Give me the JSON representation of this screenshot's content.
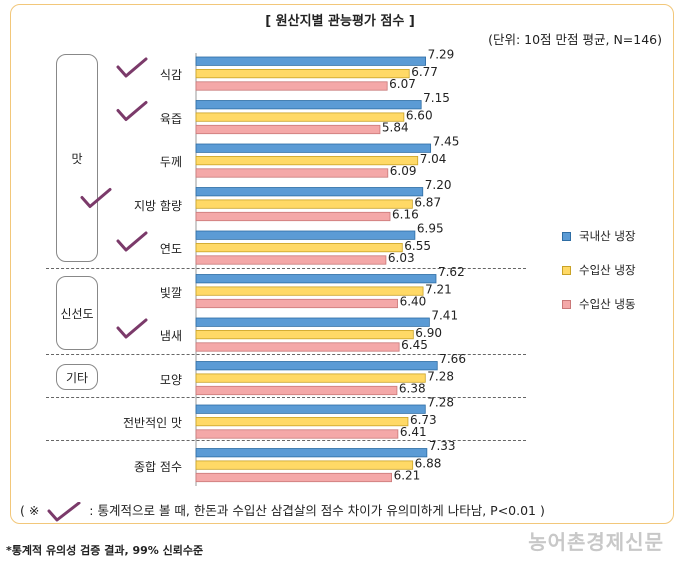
{
  "chart_data": {
    "type": "bar",
    "orientation": "horizontal",
    "title": "[ 원산지별 관능평가 점수 ]",
    "unit_note": "(단위: 10점 만점 평균, N=146)",
    "categories": [
      "식감",
      "육즙",
      "두께",
      "지방 함량",
      "연도",
      "빛깔",
      "냄새",
      "모양",
      "전반적인 맛",
      "종합 점수"
    ],
    "groups": [
      {
        "label": "맛",
        "categories": [
          "식감",
          "육즙",
          "두께",
          "지방 함량",
          "연도"
        ]
      },
      {
        "label": "신선도",
        "categories": [
          "빛깔",
          "냄새"
        ]
      },
      {
        "label": "기타",
        "categories": [
          "모양"
        ]
      }
    ],
    "significant": [
      "식감",
      "육즙",
      "지방 함량",
      "연도",
      "냄새"
    ],
    "series": [
      {
        "name": "국내산 냉장",
        "color": "#5b9bd5",
        "values": [
          7.29,
          7.15,
          7.45,
          7.2,
          6.95,
          7.62,
          7.41,
          7.66,
          7.28,
          7.33
        ]
      },
      {
        "name": "수입산 냉장",
        "color": "#ffd966",
        "values": [
          6.77,
          6.6,
          7.04,
          6.87,
          6.55,
          7.21,
          6.9,
          7.28,
          6.73,
          6.88
        ]
      },
      {
        "name": "수입산 냉동",
        "color": "#f4a8a8",
        "values": [
          6.07,
          5.84,
          6.09,
          6.16,
          6.03,
          6.4,
          6.45,
          6.38,
          6.41,
          6.21
        ]
      }
    ],
    "value_labels": [
      [
        "7.29",
        "6.77",
        "6.07"
      ],
      [
        "7.15",
        "6.60",
        "5.84"
      ],
      [
        "7.45",
        "7.04",
        "6.09"
      ],
      [
        "7.20",
        "6.87",
        "6.16"
      ],
      [
        "6.95",
        "6.55",
        "6.03"
      ],
      [
        "7.62",
        "7.21",
        "6.40"
      ],
      [
        "7.41",
        "6.90",
        "6.45"
      ],
      [
        "7.66",
        "7.28",
        "6.38"
      ],
      [
        "7.28",
        "6.73",
        "6.41"
      ],
      [
        "7.33",
        "6.88",
        "6.21"
      ]
    ],
    "xlim": [
      0,
      8.7
    ],
    "legend_position": "right"
  },
  "footnote": {
    "prefix": "( ※",
    "text": ": 통계적으로 볼 때, 한돈과 수입산 삼겹살의 점수 차이가 유의미하게 나타남, P<0.01 )",
    "check_color": "#7b3a6a"
  },
  "source_note": "*통계적 유의성 검증 결과, 99% 신뢰수준",
  "watermark": "농어촌경제신문"
}
